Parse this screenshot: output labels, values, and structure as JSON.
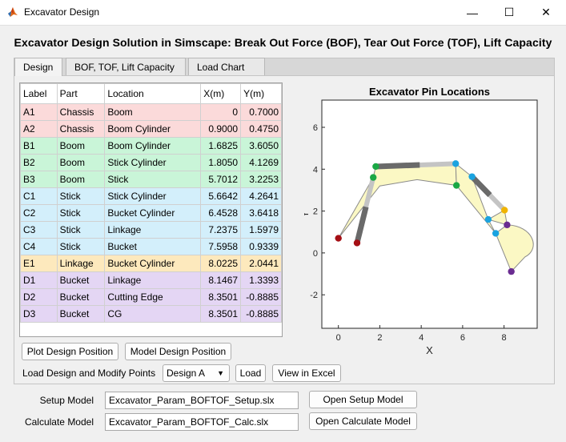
{
  "window": {
    "title": "Excavator Design",
    "minimize": "—",
    "maximize": "☐",
    "close": "✕"
  },
  "heading": "Excavator Design Solution in Simscape: Break Out Force (BOF), Tear Out Force (TOF), Lift Capacity",
  "tabs": [
    {
      "label": "Design"
    },
    {
      "label": "BOF, TOF, Lift Capacity"
    },
    {
      "label": "Load Chart"
    }
  ],
  "table": {
    "headers": [
      "Label",
      "Part",
      "Location",
      "X(m)",
      "Y(m)"
    ],
    "rows": [
      {
        "label": "A1",
        "part": "Chassis",
        "location": "Boom",
        "x": "0",
        "y": "0.7000",
        "color": "#fbdada"
      },
      {
        "label": "A2",
        "part": "Chassis",
        "location": "Boom Cylinder",
        "x": "0.9000",
        "y": "0.4750",
        "color": "#fbdada"
      },
      {
        "label": "B1",
        "part": "Boom",
        "location": "Boom Cylinder",
        "x": "1.6825",
        "y": "3.6050",
        "color": "#c9f5d8"
      },
      {
        "label": "B2",
        "part": "Boom",
        "location": "Stick Cylinder",
        "x": "1.8050",
        "y": "4.1269",
        "color": "#c9f5d8"
      },
      {
        "label": "B3",
        "part": "Boom",
        "location": "Stick",
        "x": "5.7012",
        "y": "3.2253",
        "color": "#c9f5d8"
      },
      {
        "label": "C1",
        "part": "Stick",
        "location": "Stick Cylinder",
        "x": "5.6642",
        "y": "4.2641",
        "color": "#d3effb"
      },
      {
        "label": "C2",
        "part": "Stick",
        "location": "Bucket Cylinder",
        "x": "6.4528",
        "y": "3.6418",
        "color": "#d3effb"
      },
      {
        "label": "C3",
        "part": "Stick",
        "location": "Linkage",
        "x": "7.2375",
        "y": "1.5979",
        "color": "#d3effb"
      },
      {
        "label": "C4",
        "part": "Stick",
        "location": "Bucket",
        "x": "7.5958",
        "y": "0.9339",
        "color": "#d3effb"
      },
      {
        "label": "E1",
        "part": "Linkage",
        "location": "Bucket Cylinder",
        "x": "8.0225",
        "y": "2.0441",
        "color": "#fde9bd"
      },
      {
        "label": "D1",
        "part": "Bucket",
        "location": "Linkage",
        "x": "8.1467",
        "y": "1.3393",
        "color": "#e4d6f4"
      },
      {
        "label": "D2",
        "part": "Bucket",
        "location": "Cutting Edge",
        "x": "8.3501",
        "y": "-0.8885",
        "color": "#e4d6f4"
      },
      {
        "label": "D3",
        "part": "Bucket",
        "location": "CG",
        "x": "8.3501",
        "y": "-0.8885",
        "color": "#e4d6f4"
      }
    ]
  },
  "buttons": {
    "plot_design": "Plot Design Position",
    "model_design": "Model Design Position",
    "load": "Load",
    "view_excel": "View in Excel",
    "open_setup": "Open Setup Model",
    "open_calc": "Open Calculate Model"
  },
  "load_design": {
    "label": "Load Design and Modify Points",
    "selected": "Design A"
  },
  "setup_model": {
    "label": "Setup Model",
    "value": "Excavator_Param_BOFTOF_Setup.slx"
  },
  "calc_model": {
    "label": "Calculate Model",
    "value": "Excavator_Param_BOFTOF_Calc.slx"
  },
  "chart_data": {
    "type": "scatter",
    "title": "Excavator Pin Locations",
    "xlabel": "X",
    "ylabel": "Y",
    "xlim": [
      -0.8,
      9.6
    ],
    "ylim": [
      -3.6,
      7.3
    ],
    "xticks": [
      "0",
      "2",
      "4",
      "6",
      "8"
    ],
    "yticks": [
      "-2",
      "0",
      "2",
      "4",
      "6"
    ],
    "grid": false,
    "points": [
      {
        "name": "A1",
        "x": 0,
        "y": 0.7,
        "color": "#a50f15"
      },
      {
        "name": "A2",
        "x": 0.9,
        "y": 0.475,
        "color": "#a50f15"
      },
      {
        "name": "B1",
        "x": 1.6825,
        "y": 3.605,
        "color": "#1aa845"
      },
      {
        "name": "B2",
        "x": 1.805,
        "y": 4.1269,
        "color": "#1aa845"
      },
      {
        "name": "B3",
        "x": 5.7012,
        "y": 3.2253,
        "color": "#1aa845"
      },
      {
        "name": "C1",
        "x": 5.6642,
        "y": 4.2641,
        "color": "#1aa3e0"
      },
      {
        "name": "C2",
        "x": 6.4528,
        "y": 3.6418,
        "color": "#1aa3e0"
      },
      {
        "name": "C3",
        "x": 7.2375,
        "y": 1.5979,
        "color": "#1aa3e0"
      },
      {
        "name": "C4",
        "x": 7.5958,
        "y": 0.9339,
        "color": "#1aa3e0"
      },
      {
        "name": "E1",
        "x": 8.0225,
        "y": 2.0441,
        "color": "#f0b400"
      },
      {
        "name": "D1",
        "x": 8.1467,
        "y": 1.3393,
        "color": "#6a2c91"
      },
      {
        "name": "D2",
        "x": 8.3501,
        "y": -0.8885,
        "color": "#6a2c91"
      }
    ],
    "cylinders": [
      {
        "from": "A2",
        "to": "B1"
      },
      {
        "from": "B2",
        "to": "C1"
      },
      {
        "from": "C2",
        "to": "E1"
      }
    ]
  }
}
